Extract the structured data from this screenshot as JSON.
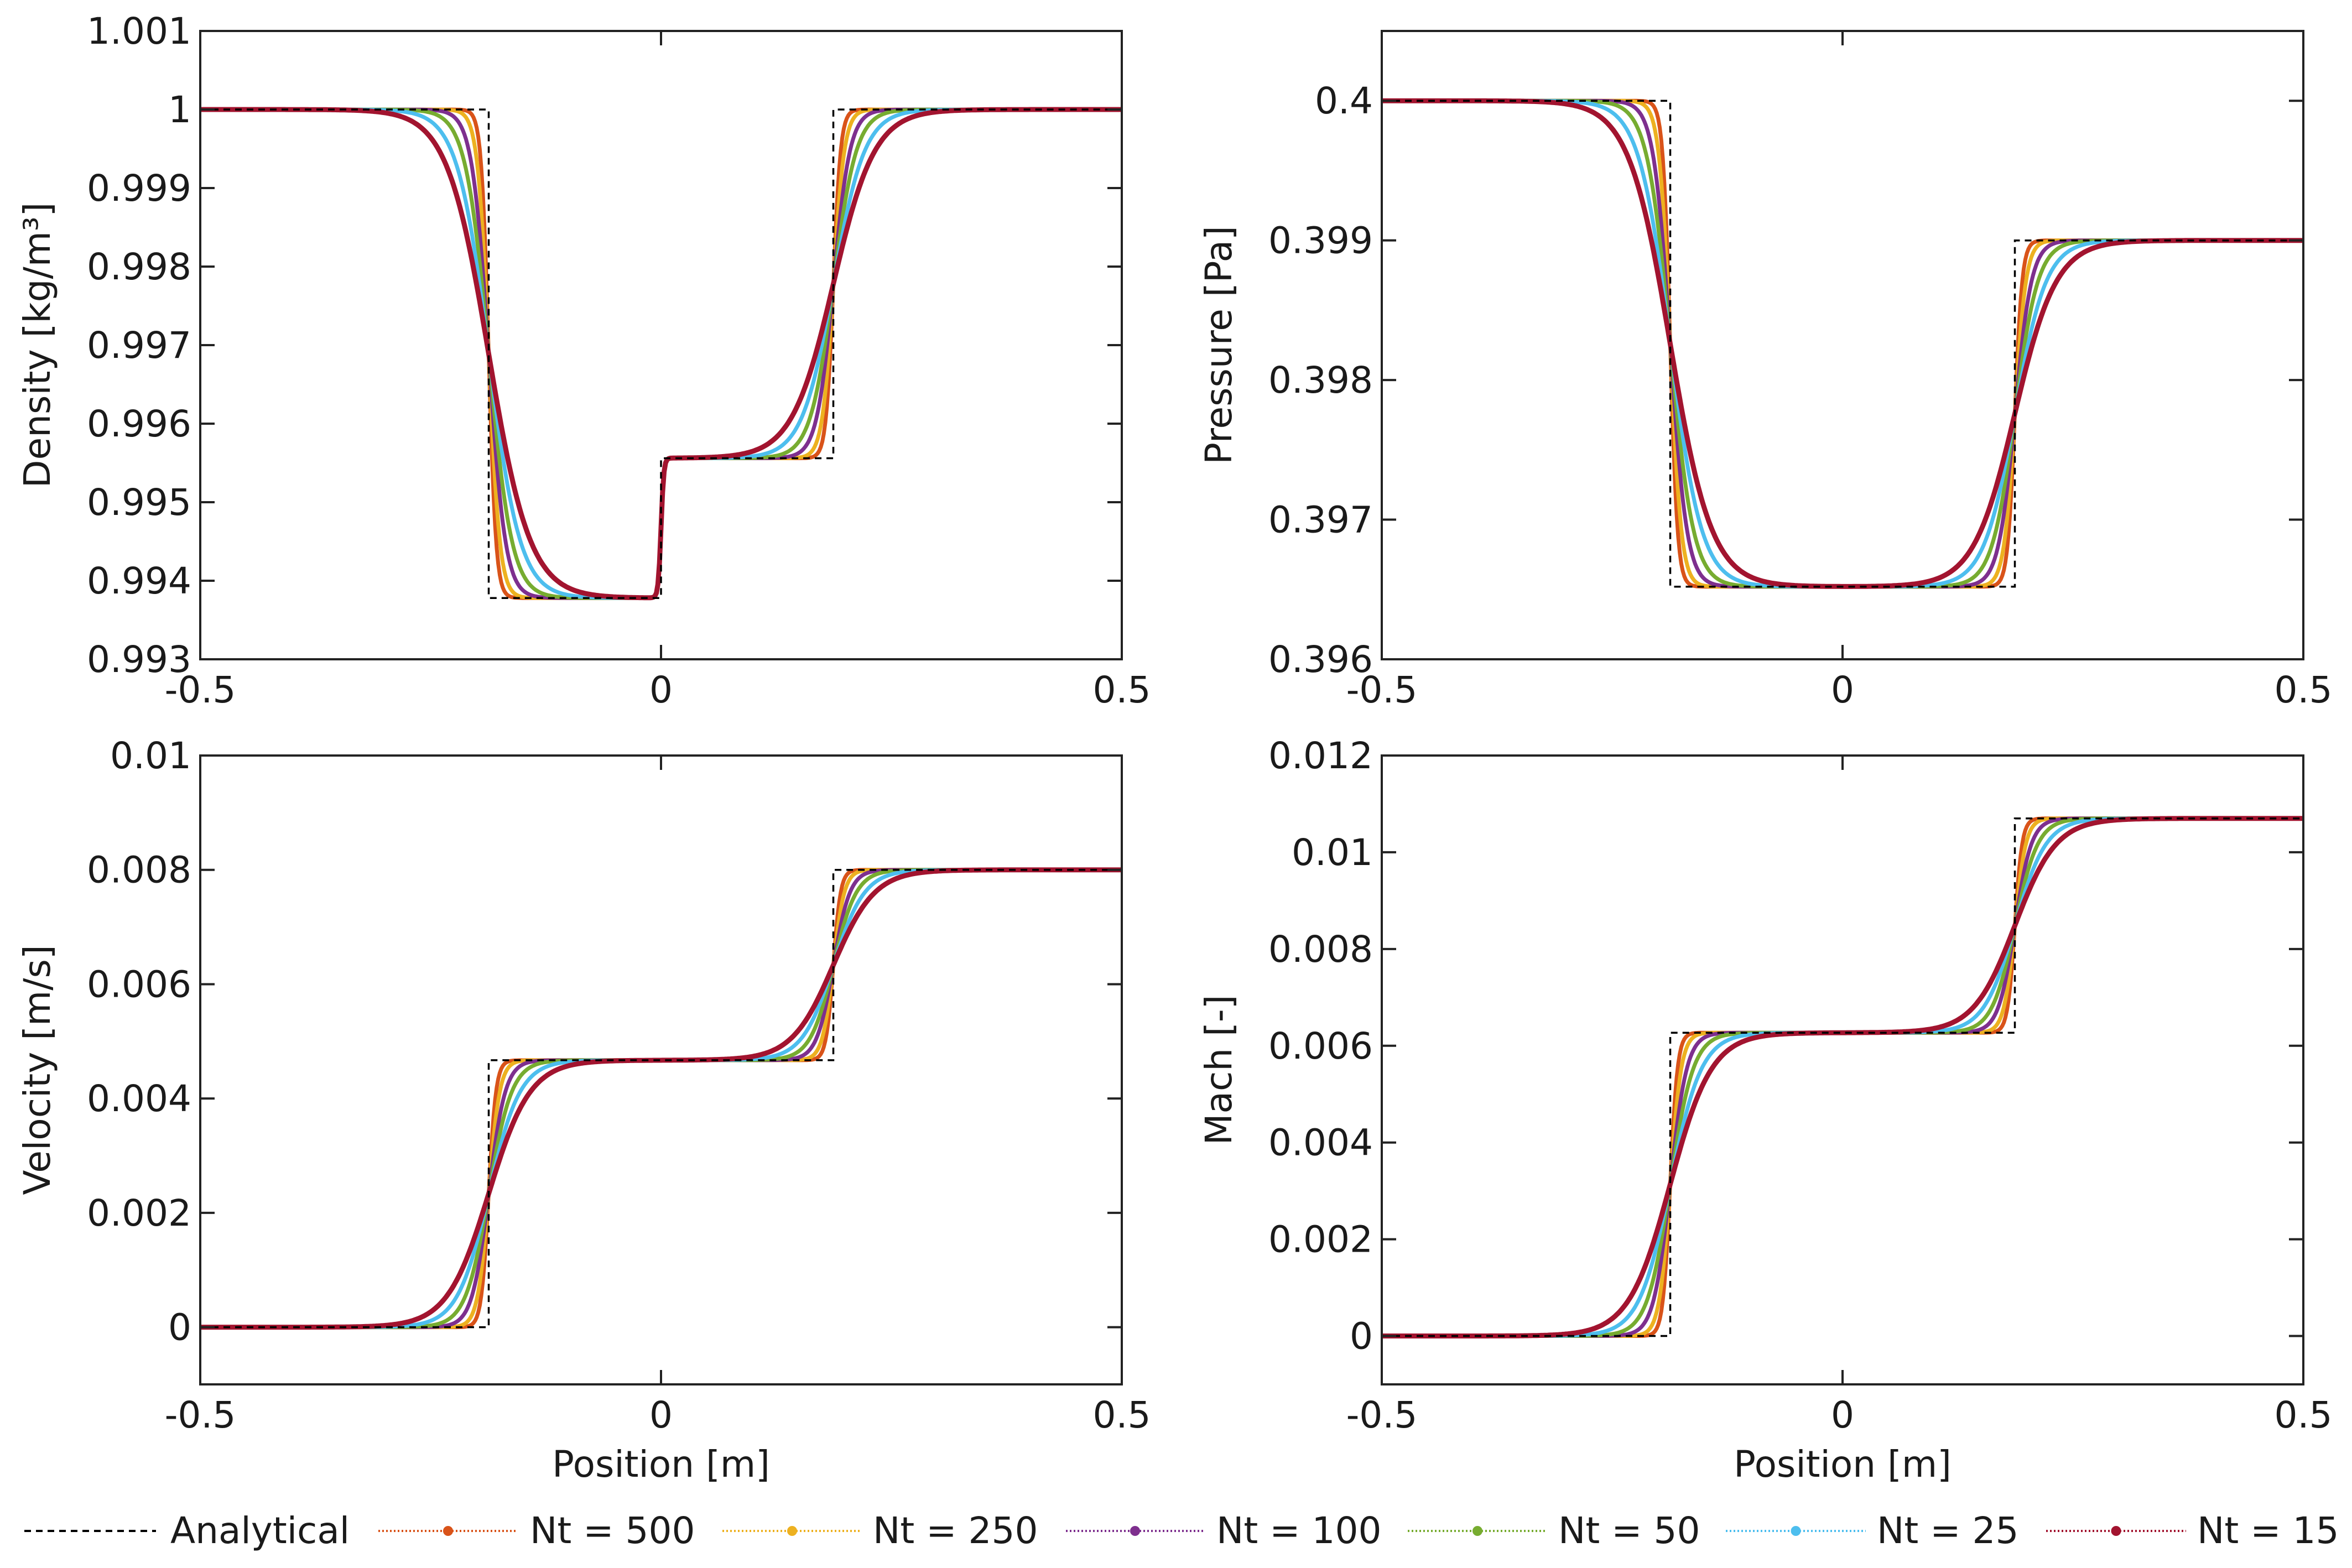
{
  "figure": {
    "shared_xlabel": "Position [m]"
  },
  "colors": {
    "analytical": "#000000",
    "nt500": "#D95319",
    "nt250": "#EDB120",
    "nt100": "#7E2F8E",
    "nt50": "#77AC30",
    "nt25": "#4DBEEE",
    "nt15": "#A2142F"
  },
  "legend": {
    "items": [
      {
        "key": "analytical",
        "label": "Analytical",
        "style": "dashed"
      },
      {
        "key": "nt500",
        "label": "Nt = 500",
        "style": "dotted"
      },
      {
        "key": "nt250",
        "label": "Nt = 250",
        "style": "dotted"
      },
      {
        "key": "nt100",
        "label": "Nt = 100",
        "style": "dotted"
      },
      {
        "key": "nt50",
        "label": "Nt = 50",
        "style": "dotted"
      },
      {
        "key": "nt25",
        "label": "Nt = 25",
        "style": "dotted"
      },
      {
        "key": "nt15",
        "label": "Nt = 15",
        "style": "dotted"
      }
    ]
  },
  "series_smoothing_widths": {
    "nt500": 0.008,
    "nt250": 0.012,
    "nt100": 0.018,
    "nt50": 0.025,
    "nt25": 0.034,
    "nt15": 0.045
  },
  "chart_data": [
    {
      "id": "density",
      "type": "line",
      "title": "",
      "xlabel": "",
      "ylabel": "Density [kg/m³]",
      "xlim": [
        -0.5,
        0.5
      ],
      "ylim": [
        0.993,
        1.001
      ],
      "xticks": [
        -0.5,
        0,
        0.5
      ],
      "xtick_labels": [
        "-0.5",
        "0",
        "0.5"
      ],
      "yticks": [
        0.993,
        0.994,
        0.995,
        0.996,
        0.997,
        0.998,
        0.999,
        1,
        1.001
      ],
      "ytick_labels": [
        "0.993",
        "0.994",
        "0.995",
        "0.996",
        "0.997",
        "0.998",
        "0.999",
        "1",
        "1.001"
      ],
      "analytical": {
        "x": [
          -0.5,
          -0.187,
          -0.187,
          0.0,
          0.0,
          0.187,
          0.187,
          0.5
        ],
        "y": [
          1.0,
          1.0,
          0.99378,
          0.99378,
          0.99556,
          0.99556,
          1.0,
          1.0
        ]
      },
      "series": [
        "nt500",
        "nt250",
        "nt100",
        "nt50",
        "nt25",
        "nt15"
      ]
    },
    {
      "id": "pressure",
      "type": "line",
      "title": "",
      "xlabel": "",
      "ylabel": "Pressure [Pa]",
      "xlim": [
        -0.5,
        0.5
      ],
      "ylim": [
        0.396,
        0.4005
      ],
      "xticks": [
        -0.5,
        0,
        0.5
      ],
      "xtick_labels": [
        "-0.5",
        "0",
        "0.5"
      ],
      "yticks": [
        0.396,
        0.397,
        0.398,
        0.399,
        0.4
      ],
      "ytick_labels": [
        "0.396",
        "0.397",
        "0.398",
        "0.399",
        "0.4"
      ],
      "analytical": {
        "x": [
          -0.5,
          -0.187,
          -0.187,
          0.187,
          0.187,
          0.5
        ],
        "y": [
          0.4,
          0.4,
          0.39652,
          0.39652,
          0.399,
          0.399
        ]
      },
      "series": [
        "nt500",
        "nt250",
        "nt100",
        "nt50",
        "nt25",
        "nt15"
      ]
    },
    {
      "id": "velocity",
      "type": "line",
      "title": "",
      "xlabel": "Position [m]",
      "ylabel": "Velocity [m/s]",
      "xlim": [
        -0.5,
        0.5
      ],
      "ylim": [
        -0.001,
        0.01
      ],
      "xticks": [
        -0.5,
        0,
        0.5
      ],
      "xtick_labels": [
        "-0.5",
        "0",
        "0.5"
      ],
      "yticks": [
        0,
        0.002,
        0.004,
        0.006,
        0.008,
        0.01
      ],
      "ytick_labels": [
        "0",
        "0.002",
        "0.004",
        "0.006",
        "0.008",
        "0.01"
      ],
      "analytical": {
        "x": [
          -0.5,
          -0.187,
          -0.187,
          0.187,
          0.187,
          0.5
        ],
        "y": [
          0.0,
          0.0,
          0.00467,
          0.00467,
          0.008,
          0.008
        ]
      },
      "series": [
        "nt500",
        "nt250",
        "nt100",
        "nt50",
        "nt25",
        "nt15"
      ]
    },
    {
      "id": "mach",
      "type": "line",
      "title": "",
      "xlabel": "Position [m]",
      "ylabel": "Mach [-]",
      "xlim": [
        -0.5,
        0.5
      ],
      "ylim": [
        -0.001,
        0.012
      ],
      "xticks": [
        -0.5,
        0,
        0.5
      ],
      "xtick_labels": [
        "-0.5",
        "0",
        "0.5"
      ],
      "yticks": [
        0,
        0.002,
        0.004,
        0.006,
        0.008,
        0.01,
        0.012
      ],
      "ytick_labels": [
        "0",
        "0.002",
        "0.004",
        "0.006",
        "0.008",
        "0.01",
        "0.012"
      ],
      "analytical": {
        "x": [
          -0.5,
          -0.187,
          -0.187,
          0.187,
          0.187,
          0.5
        ],
        "y": [
          0.0,
          0.0,
          0.00627,
          0.00627,
          0.0107,
          0.0107
        ]
      },
      "series": [
        "nt500",
        "nt250",
        "nt100",
        "nt50",
        "nt25",
        "nt15"
      ]
    }
  ]
}
